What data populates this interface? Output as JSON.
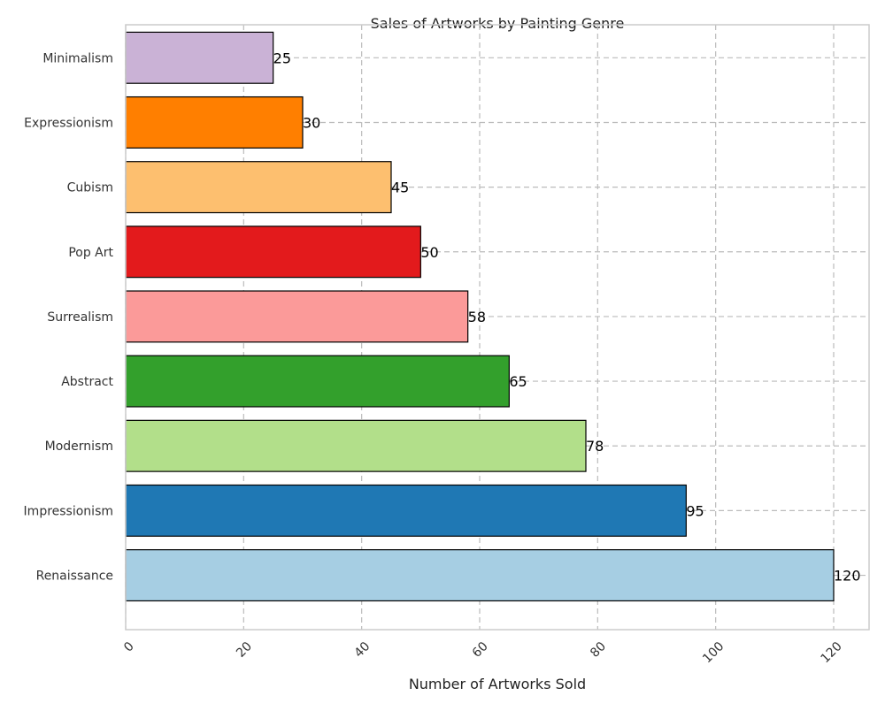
{
  "chart_data": {
    "type": "bar",
    "orientation": "horizontal",
    "title": "Sales of Artworks by Painting Genre",
    "xlabel": "Number of Artworks Sold",
    "ylabel": "",
    "xlim": [
      0,
      126
    ],
    "xticks": [
      0,
      20,
      40,
      60,
      80,
      100,
      120
    ],
    "grid": true,
    "categories": [
      "Renaissance",
      "Impressionism",
      "Modernism",
      "Abstract",
      "Surrealism",
      "Pop Art",
      "Cubism",
      "Expressionism",
      "Minimalism"
    ],
    "values": [
      120,
      95,
      78,
      65,
      58,
      50,
      45,
      30,
      25
    ],
    "colors": [
      "#a6cee3",
      "#1f78b4",
      "#b2df8a",
      "#33a02c",
      "#fb9a99",
      "#e31a1c",
      "#fdbf6f",
      "#ff7f00",
      "#cab2d6"
    ]
  }
}
